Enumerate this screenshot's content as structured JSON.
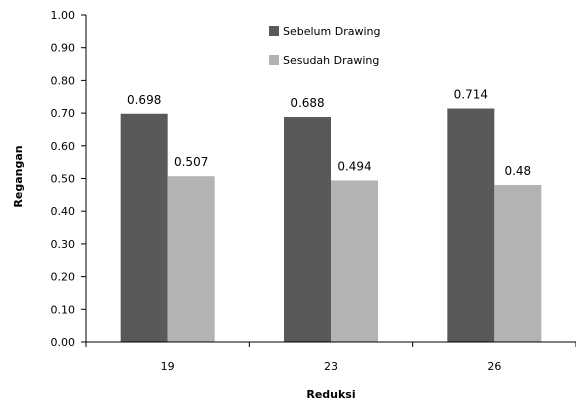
{
  "chart_data": {
    "type": "bar",
    "categories": [
      "19",
      "23",
      "26"
    ],
    "series": [
      {
        "name": "Sebelum Drawing",
        "values": [
          0.698,
          0.688,
          0.714
        ],
        "labels": [
          "0.698",
          "0.688",
          "0.714"
        ],
        "color": "#595959"
      },
      {
        "name": "Sesudah Drawing",
        "values": [
          0.507,
          0.494,
          0.48
        ],
        "labels": [
          "0.507",
          "0.494",
          "0.48"
        ],
        "color": "#b3b3b3"
      }
    ],
    "xlabel": "Reduksi",
    "ylabel": "Regangan",
    "ylim": [
      0,
      1
    ],
    "yticks": [
      "0.00",
      "0.10",
      "0.20",
      "0.30",
      "0.40",
      "0.50",
      "0.60",
      "0.70",
      "0.80",
      "0.90",
      "1.00"
    ],
    "legend_position": "top-center",
    "grid": false
  }
}
